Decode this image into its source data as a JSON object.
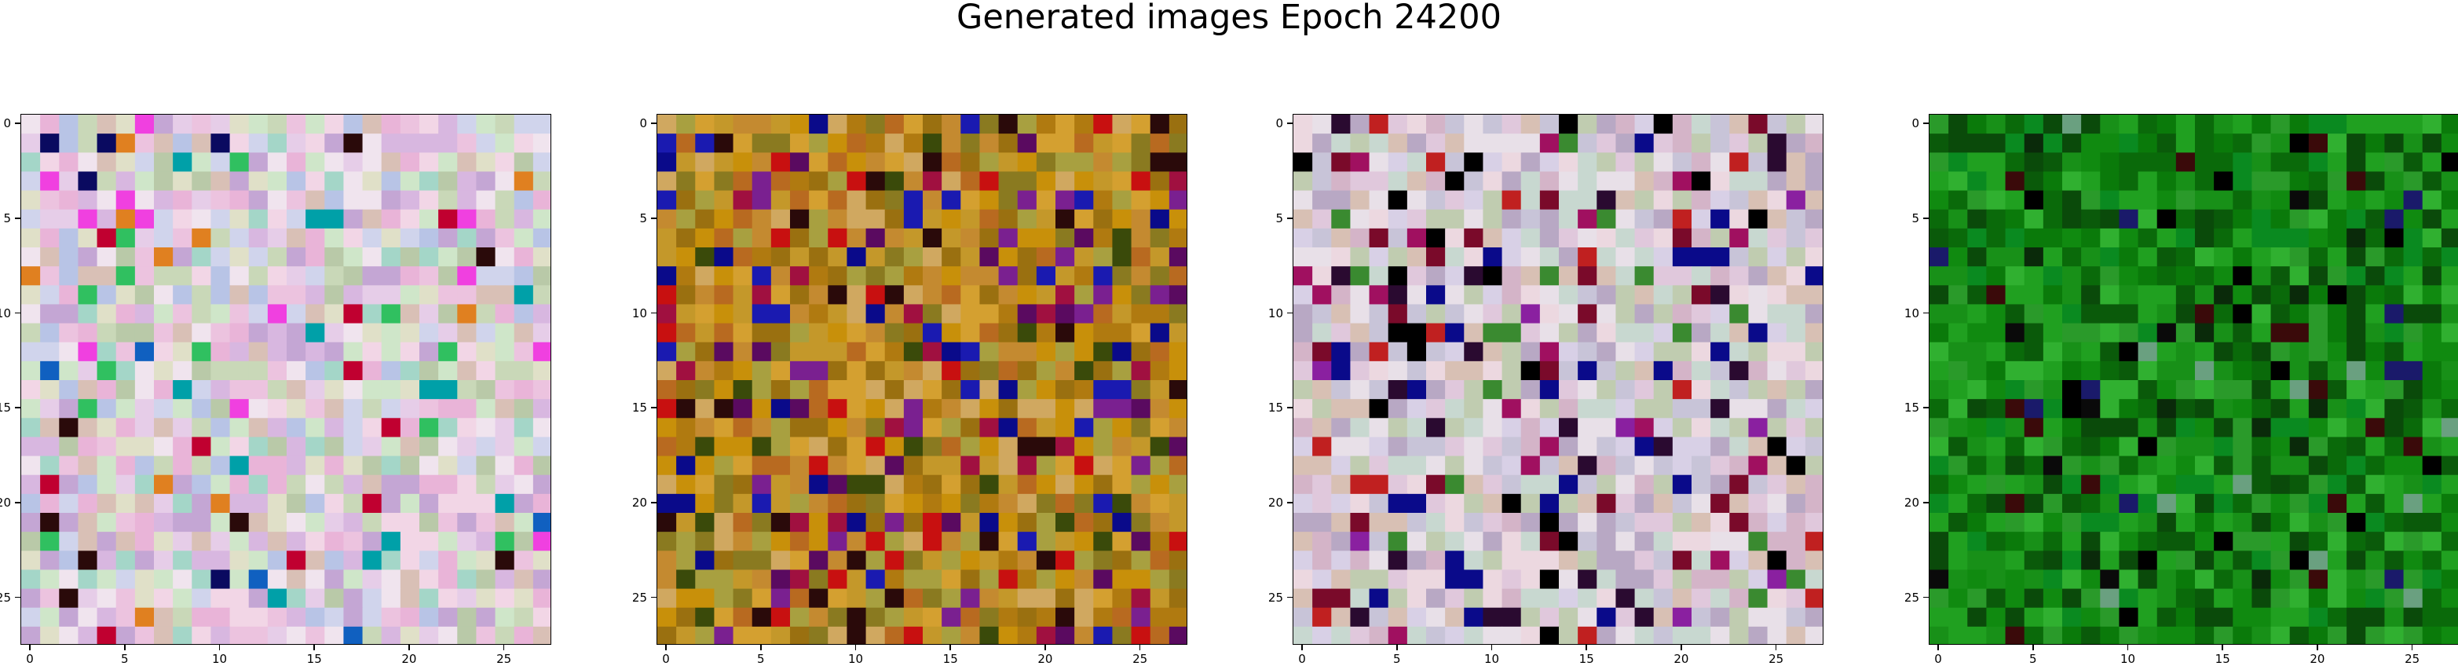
{
  "figure": {
    "title": "Generated images Epoch 24200"
  },
  "chart_data": [
    {
      "type": "heatmap",
      "image_size": 28,
      "xticks": [
        "0",
        "5",
        "10",
        "15",
        "20",
        "25"
      ],
      "yticks": [
        "0",
        "5",
        "10",
        "15",
        "20",
        "25"
      ],
      "palette": [
        "#d8b7e0",
        "#e6cde8",
        "#c9d8b8",
        "#f0e4ee",
        "#b8c4e6",
        "#e9b4d8",
        "#cfe6c9",
        "#d9c0b6",
        "#a4d6c8",
        "#f2d6e6",
        "#c4a6d4",
        "#e0e0c8",
        "#b9c9a8",
        "#ecc3df",
        "#d0d4ec"
      ],
      "accents": [
        "#c00030",
        "#2a0a0a",
        "#00a0a8",
        "#f040e0",
        "#0a0a60",
        "#30c060",
        "#e08020",
        "#1060c0"
      ],
      "accent_ratio": 0.08
    },
    {
      "type": "heatmap",
      "image_size": 28,
      "xticks": [
        "0",
        "5",
        "10",
        "15",
        "20",
        "25"
      ],
      "yticks": [
        "0",
        "5",
        "10",
        "15",
        "20",
        "25"
      ],
      "palette": [
        "#c8900a",
        "#b07a10",
        "#d4a030",
        "#9a7010",
        "#c48a30",
        "#a8a040",
        "#b86a20",
        "#d0a860",
        "#8a7a20",
        "#c4982a"
      ],
      "accents": [
        "#5a0a60",
        "#1a1ab0",
        "#2a0a0a",
        "#c81010",
        "#7a2090",
        "#0a0a8a",
        "#3a4a0a",
        "#a01040"
      ],
      "accent_ratio": 0.28
    },
    {
      "type": "heatmap",
      "image_size": 28,
      "xticks": [
        "0",
        "5",
        "10",
        "15",
        "20",
        "25"
      ],
      "yticks": [
        "0",
        "5",
        "10",
        "15",
        "20",
        "25"
      ],
      "palette": [
        "#e0c8dc",
        "#d8d0e6",
        "#c8c4d8",
        "#ecd8e0",
        "#d4b4c8",
        "#c0ccb0",
        "#e8e0e8",
        "#b8a8c4",
        "#d8c0b4",
        "#c8d8d0"
      ],
      "accents": [
        "#7a0a2a",
        "#2a0a30",
        "#c02020",
        "#0a0a8a",
        "#3a8a30",
        "#a01060",
        "#000000",
        "#8a20a0"
      ],
      "accent_ratio": 0.2
    },
    {
      "type": "heatmap",
      "image_size": 28,
      "xticks": [
        "0",
        "5",
        "10",
        "15",
        "20",
        "25"
      ],
      "yticks": [
        "0",
        "5",
        "10",
        "15",
        "20",
        "25"
      ],
      "palette": [
        "#0a7a0a",
        "#108a10",
        "#0a6a0a",
        "#20a020",
        "#0a5a0a",
        "#189018",
        "#0a8a20",
        "#30b030",
        "#0a4a0a",
        "#2a9a2a"
      ],
      "accents": [
        "#000000",
        "#0a0a0a",
        "#1a1a6a",
        "#3a0a0a",
        "#6aa080",
        "#0a2a0a"
      ],
      "accent_ratio": 0.12
    }
  ]
}
